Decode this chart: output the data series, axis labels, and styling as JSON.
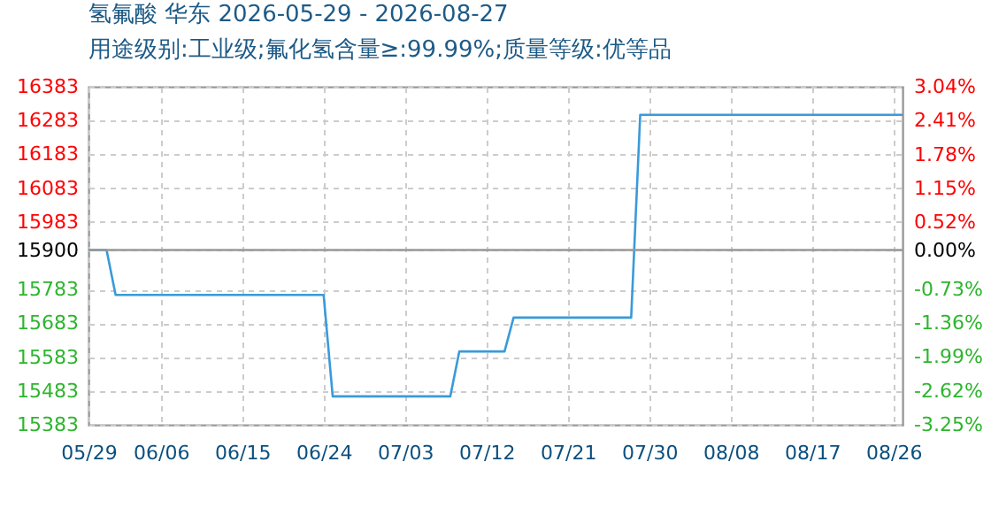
{
  "chart_data": {
    "type": "line",
    "title": "氢氟酸 华东 2026-05-29 - 2026-08-27",
    "subtitle": "用途级别:工业级;氟化氢含量≥:99.99%;质量等级:优等品",
    "x": [
      "2026-05-29",
      "2026-05-31",
      "2026-06-01",
      "2026-06-24",
      "2026-06-25",
      "2026-07-08",
      "2026-07-09",
      "2026-07-14",
      "2026-07-15",
      "2026-07-28",
      "2026-07-29",
      "2026-08-27"
    ],
    "series": [
      {
        "color": "#3a9ad9",
        "values": [
          15900,
          15900,
          15767,
          15767,
          15467,
          15467,
          15600,
          15600,
          15700,
          15700,
          16300,
          16300
        ]
      }
    ],
    "xlim": [
      "2026-05-29",
      "2026-08-27"
    ],
    "xticks": [
      {
        "value": "2026-05-29",
        "label": "05/29"
      },
      {
        "value": "2026-06-06",
        "label": "06/06"
      },
      {
        "value": "2026-06-15",
        "label": "06/15"
      },
      {
        "value": "2026-06-24",
        "label": "06/24"
      },
      {
        "value": "2026-07-03",
        "label": "07/03"
      },
      {
        "value": "2026-07-12",
        "label": "07/12"
      },
      {
        "value": "2026-07-21",
        "label": "07/21"
      },
      {
        "value": "2026-07-30",
        "label": "07/30"
      },
      {
        "value": "2026-08-08",
        "label": "08/08"
      },
      {
        "value": "2026-08-17",
        "label": "08/17"
      },
      {
        "value": "2026-08-26",
        "label": "08/26"
      }
    ],
    "ylim": [
      15383,
      16383
    ],
    "yticks": [
      15383,
      15483,
      15583,
      15683,
      15783,
      15900,
      15983,
      16083,
      16183,
      16283,
      16383
    ],
    "y2lim": [
      -3.25,
      3.04
    ],
    "y2ticks": [
      {
        "value": -3.25,
        "label": "-3.25%"
      },
      {
        "value": -2.62,
        "label": "-2.62%"
      },
      {
        "value": -1.99,
        "label": "-1.99%"
      },
      {
        "value": -1.36,
        "label": "-1.36%"
      },
      {
        "value": -0.73,
        "label": "-0.73%"
      },
      {
        "value": 0,
        "label": "0.00%"
      },
      {
        "value": 0.52,
        "label": "0.52%"
      },
      {
        "value": 1.15,
        "label": "1.15%"
      },
      {
        "value": 1.78,
        "label": "1.78%"
      },
      {
        "value": 2.41,
        "label": "2.41%"
      },
      {
        "value": 3.04,
        "label": "3.04%"
      }
    ],
    "ref_lines": [
      {
        "axis": "y",
        "value": 15900,
        "color": "#999999"
      }
    ],
    "grid": true,
    "marker": "none",
    "line_style": "solid"
  }
}
